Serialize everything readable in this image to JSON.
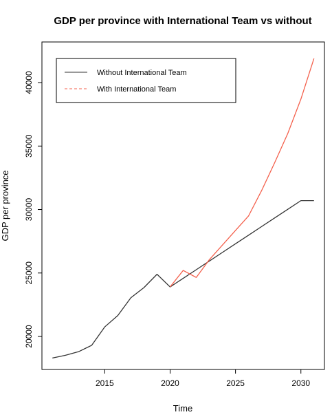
{
  "chart_data": {
    "type": "line",
    "title": "GDP per province with International Team vs without",
    "xlabel": "Time",
    "ylabel": "GDP per province",
    "xlim": [
      2010.2,
      2031.8
    ],
    "ylim": [
      17400,
      43200
    ],
    "x_ticks": [
      2015,
      2020,
      2025,
      2030
    ],
    "y_ticks": [
      20000,
      25000,
      30000,
      35000,
      40000
    ],
    "grid": false,
    "legend_position": "top-left",
    "series": [
      {
        "name": "Without International Team",
        "color": "#333333",
        "line_style": "solid",
        "x": [
          2011,
          2012,
          2013,
          2014,
          2015,
          2016,
          2017,
          2018,
          2019,
          2020,
          2021,
          2022,
          2023,
          2024,
          2025,
          2026,
          2027,
          2028,
          2029,
          2030,
          2031
        ],
        "y": [
          18300,
          18520,
          18800,
          19300,
          20750,
          21650,
          23050,
          23850,
          24900,
          23900,
          24580,
          25260,
          25940,
          26620,
          27300,
          27980,
          28660,
          29340,
          30020,
          30700,
          30700
        ]
      },
      {
        "name": "With International Team",
        "color": "#f4604c",
        "line_style": "dashed",
        "x": [
          2020,
          2021,
          2022,
          2023,
          2024,
          2025,
          2026,
          2027,
          2028,
          2029,
          2030,
          2031
        ],
        "y": [
          23900,
          25200,
          24650,
          26050,
          27200,
          28350,
          29500,
          31500,
          33700,
          36000,
          38700,
          41900
        ]
      }
    ]
  }
}
